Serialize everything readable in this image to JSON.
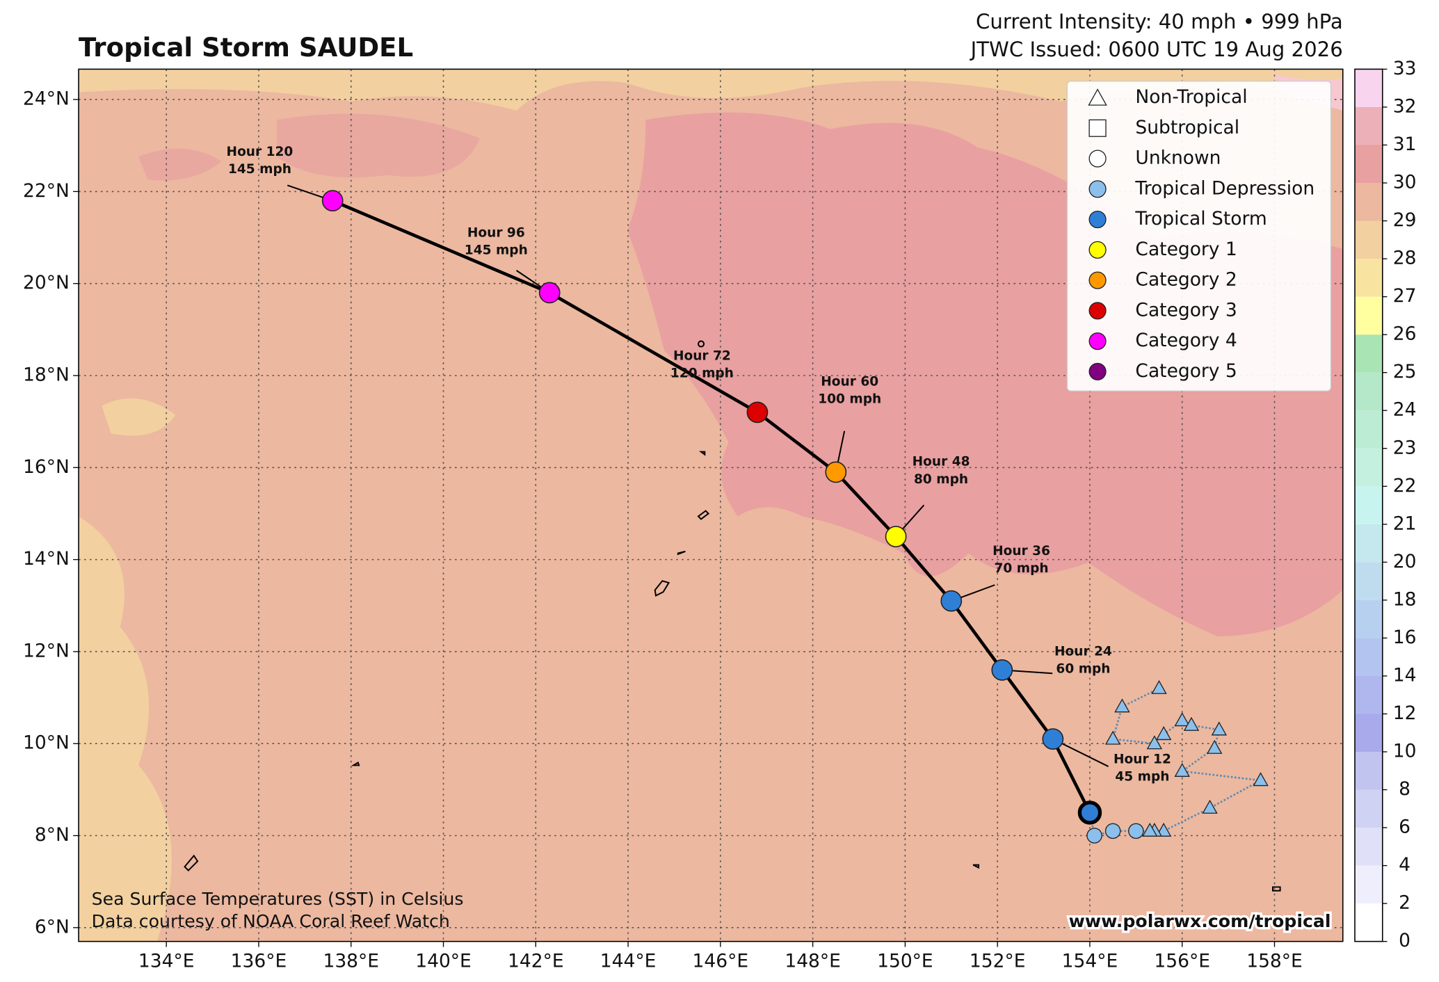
{
  "header": {
    "title": "Tropical Storm SAUDEL",
    "intensity": "Current Intensity: 40 mph • 999 hPa",
    "issued": "JTWC Issued: 0600 UTC 19 Aug 2026"
  },
  "map": {
    "xlim": [
      132.1,
      159.48
    ],
    "ylim": [
      5.7,
      24.66
    ],
    "grid": true,
    "xticks": [
      {
        "value": 134,
        "label": "134°E"
      },
      {
        "value": 136,
        "label": "136°E"
      },
      {
        "value": 138,
        "label": "138°E"
      },
      {
        "value": 140,
        "label": "140°E"
      },
      {
        "value": 142,
        "label": "142°E"
      },
      {
        "value": 144,
        "label": "144°E"
      },
      {
        "value": 146,
        "label": "146°E"
      },
      {
        "value": 148,
        "label": "148°E"
      },
      {
        "value": 150,
        "label": "150°E"
      },
      {
        "value": 152,
        "label": "152°E"
      },
      {
        "value": 154,
        "label": "154°E"
      },
      {
        "value": 156,
        "label": "156°E"
      },
      {
        "value": 158,
        "label": "158°E"
      }
    ],
    "yticks": [
      {
        "value": 6,
        "label": "6°N"
      },
      {
        "value": 8,
        "label": "8°N"
      },
      {
        "value": 10,
        "label": "10°N"
      },
      {
        "value": 12,
        "label": "12°N"
      },
      {
        "value": 14,
        "label": "14°N"
      },
      {
        "value": 16,
        "label": "16°N"
      },
      {
        "value": 18,
        "label": "18°N"
      },
      {
        "value": 20,
        "label": "20°N"
      },
      {
        "value": 22,
        "label": "22°N"
      },
      {
        "value": 24,
        "label": "24°N"
      }
    ],
    "past_non_tropical": {
      "color": "#8cc0ec",
      "lon": [
        155.5,
        154.7,
        154.5,
        155.4,
        155.6,
        156.0,
        156.2,
        156.8,
        156.7,
        156.0,
        157.7,
        156.6,
        155.6,
        155.4,
        155.3
      ],
      "lat": [
        11.2,
        10.8,
        10.1,
        10.0,
        10.2,
        10.5,
        10.4,
        10.3,
        9.9,
        9.4,
        9.2,
        8.6,
        8.1,
        8.1,
        8.1
      ]
    },
    "past_depression": {
      "color": "#8cc0ec",
      "lon": [
        155.0,
        154.5,
        154.1
      ],
      "lat": [
        8.1,
        8.1,
        8.0
      ]
    },
    "current": {
      "lon": 154.0,
      "lat": 8.5,
      "color": "#2f7fd6"
    },
    "forecast": [
      {
        "label": "Hour 12",
        "wind": "45 mph",
        "lon": 153.2,
        "lat": 10.1,
        "color": "#2f7fd6"
      },
      {
        "label": "Hour 24",
        "wind": "60 mph",
        "lon": 152.1,
        "lat": 11.6,
        "color": "#2f7fd6"
      },
      {
        "label": "Hour 36",
        "wind": "70 mph",
        "lon": 151.0,
        "lat": 13.1,
        "color": "#2f7fd6"
      },
      {
        "label": "Hour 48",
        "wind": "80 mph",
        "lon": 149.8,
        "lat": 14.5,
        "color": "#ffff00"
      },
      {
        "label": "Hour 60",
        "wind": "100 mph",
        "lon": 148.5,
        "lat": 15.9,
        "color": "#ff9900"
      },
      {
        "label": "Hour 72",
        "wind": "120 mph",
        "lon": 146.8,
        "lat": 17.2,
        "color": "#dd0000"
      },
      {
        "label": "Hour 96",
        "wind": "145 mph",
        "lon": 142.3,
        "lat": 19.8,
        "color": "#ff00ff"
      },
      {
        "label": "Hour 120",
        "wind": "145 mph",
        "lon": 137.6,
        "lat": 21.8,
        "color": "#ff00ff"
      }
    ]
  },
  "legend": {
    "items": [
      {
        "label": "Non-Tropical",
        "marker": "triangle",
        "color": "#ffffff"
      },
      {
        "label": "Subtropical",
        "marker": "square",
        "color": "#ffffff"
      },
      {
        "label": "Unknown",
        "marker": "circle",
        "color": "#ffffff"
      },
      {
        "label": "Tropical Depression",
        "marker": "circle",
        "color": "#8cc0ec"
      },
      {
        "label": "Tropical Storm",
        "marker": "circle",
        "color": "#2f7fd6"
      },
      {
        "label": "Category 1",
        "marker": "circle",
        "color": "#ffff00"
      },
      {
        "label": "Category 2",
        "marker": "circle",
        "color": "#ff9900"
      },
      {
        "label": "Category 3",
        "marker": "circle",
        "color": "#dd0000"
      },
      {
        "label": "Category 4",
        "marker": "circle",
        "color": "#ff00ff"
      },
      {
        "label": "Category 5",
        "marker": "circle",
        "color": "#800080"
      }
    ]
  },
  "colorbar": {
    "ticks": [
      0,
      2,
      4,
      6,
      8,
      10,
      12,
      14,
      16,
      18,
      20,
      21,
      22,
      23,
      24,
      25,
      26,
      27,
      28,
      29,
      30,
      31,
      32,
      33
    ],
    "colors": [
      "#ffffff",
      "#eeeefc",
      "#e0e0f8",
      "#d0d2f4",
      "#c2c4f0",
      "#a8aaec",
      "#b0b6ee",
      "#b4c4f0",
      "#b8d0f0",
      "#bedcee",
      "#c4e8ee",
      "#c8f4f0",
      "#c4f0e0",
      "#bcecd4",
      "#b4e8c8",
      "#a8e4b4",
      "#ffffa0",
      "#f8e4a0",
      "#f2d0a0",
      "#ecb8a0",
      "#e8a0a0",
      "#ecb0b8",
      "#f8d4ee"
    ]
  },
  "notes": [
    "Sea Surface Temperatures (SST) in Celsius",
    "Data courtesy of NOAA Coral Reef Watch"
  ],
  "watermark": "www.polarwx.com/tropical"
}
